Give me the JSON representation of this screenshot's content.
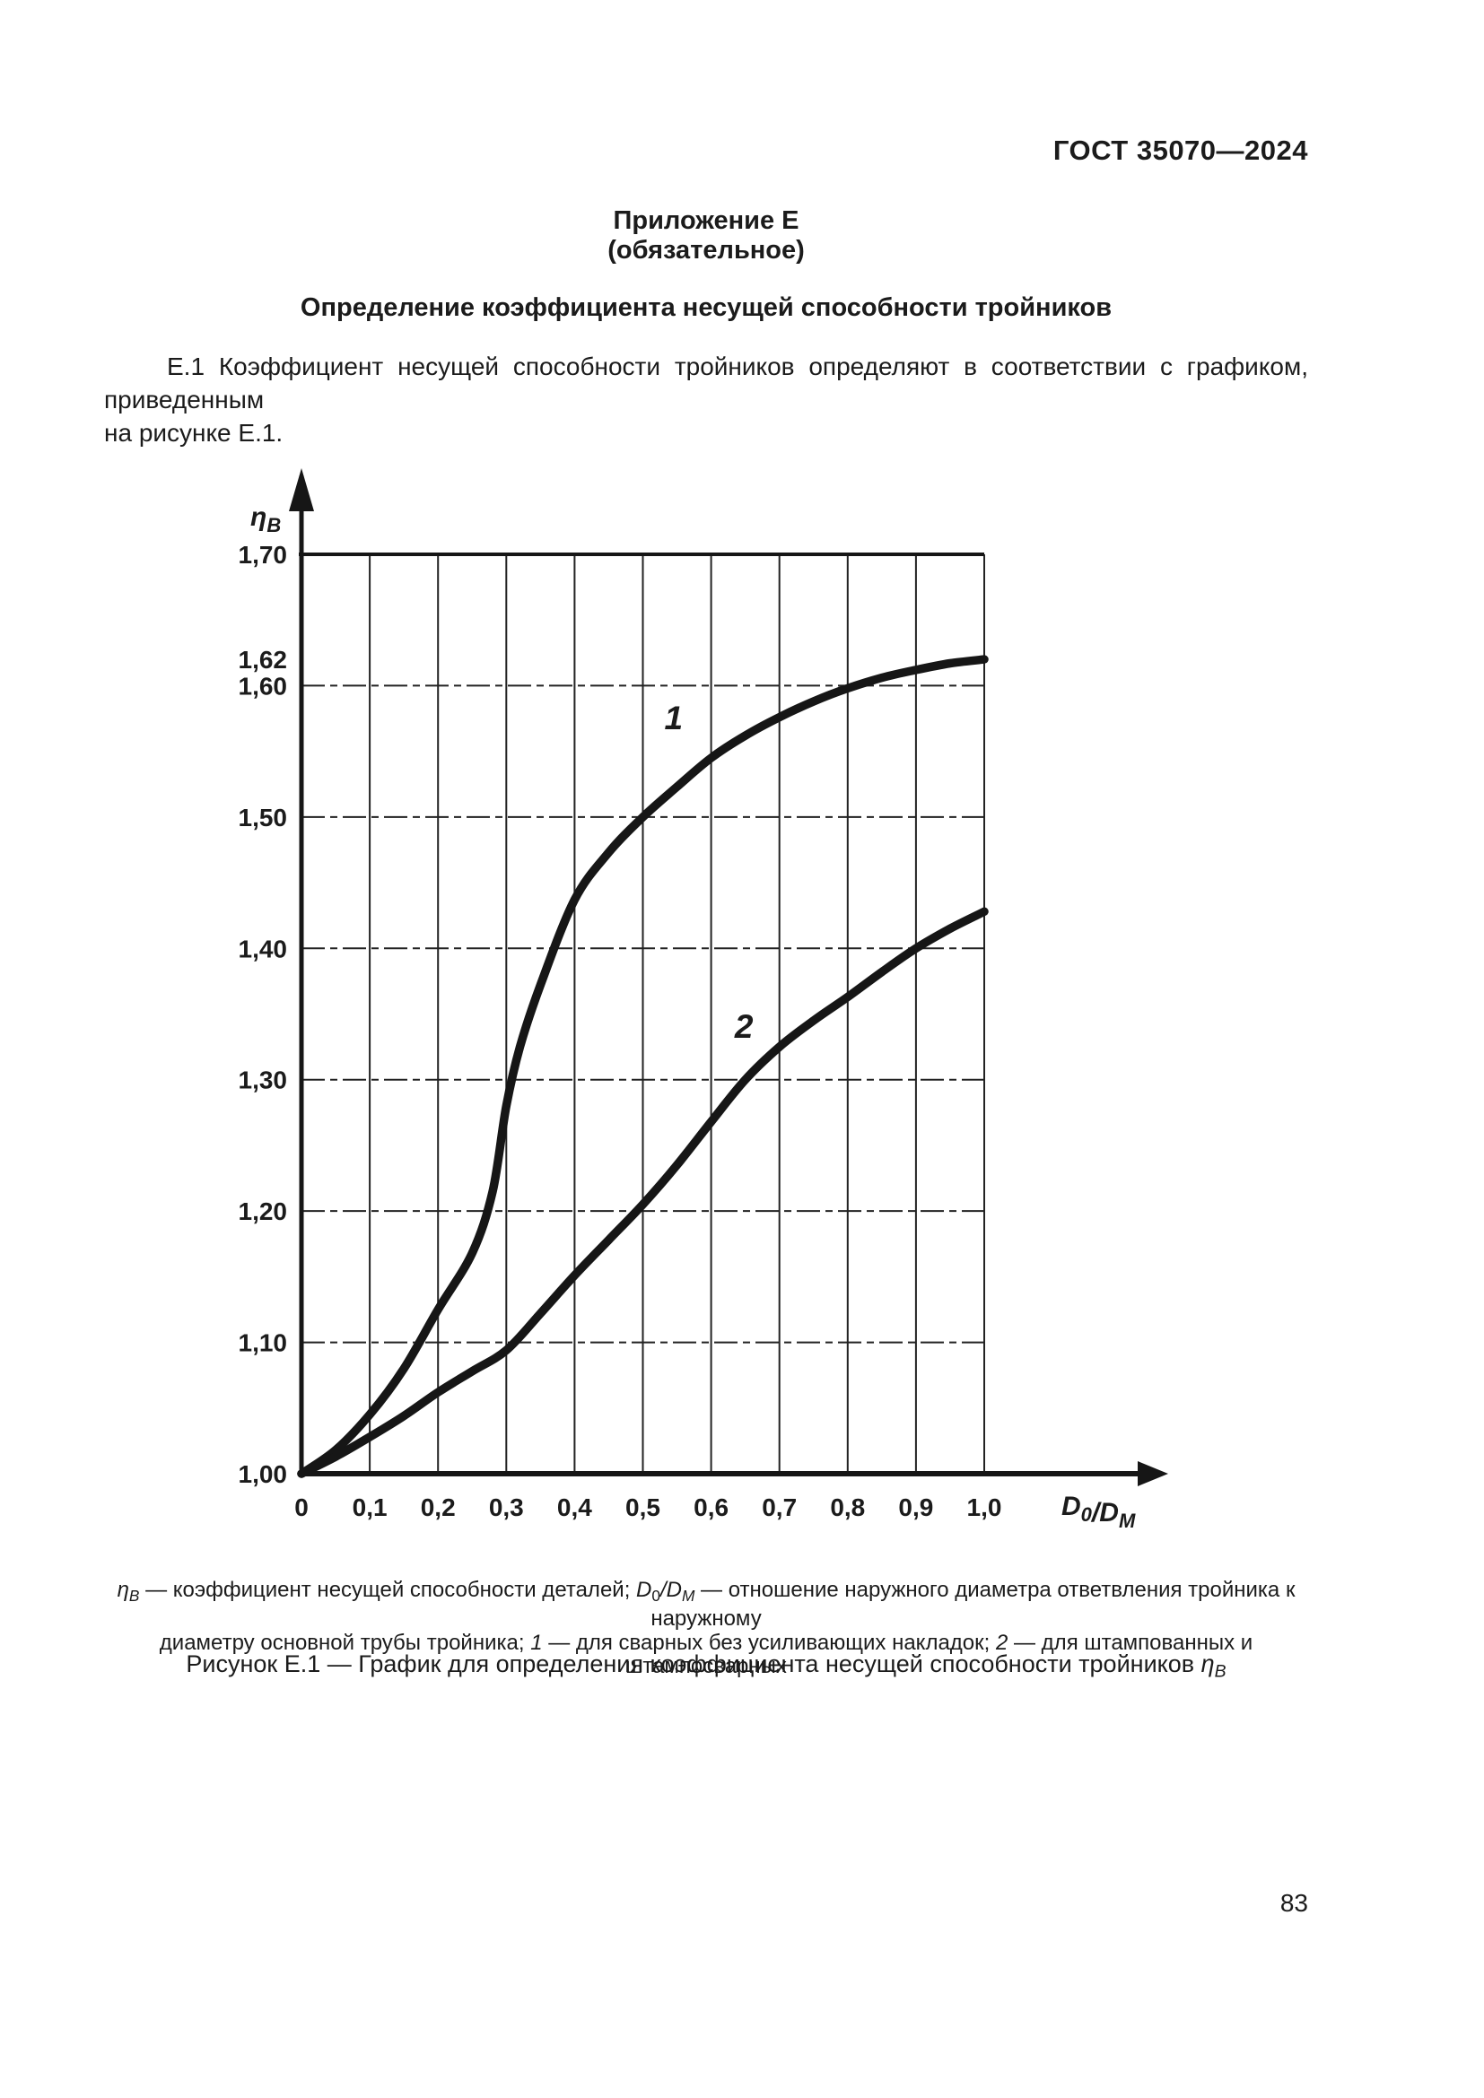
{
  "page": {
    "standard_code": "ГОСТ 35070—2024",
    "page_number": "83"
  },
  "appendix": {
    "label": "Приложение Е",
    "obligation": "(обязательное)",
    "title": "Определение коэффициента несущей способности тройников"
  },
  "body": {
    "line1": "Е.1 Коэффициент несущей способности тройников определяют  в соответствии с графиком, приведенным",
    "line2": "на рисунке Е.1."
  },
  "chart_data": {
    "type": "line",
    "title": "Рисунок Е.1",
    "xlabel_rich": [
      {
        "t": "D",
        "i": true
      },
      {
        "t": "0",
        "sub": true
      },
      {
        "t": "/",
        "i": true
      },
      {
        "t": "D",
        "i": true
      },
      {
        "t": "M",
        "sub": true,
        "i": true
      }
    ],
    "ylabel_rich": [
      {
        "t": "η",
        "i": true
      },
      {
        "t": "B",
        "sub": true,
        "i": true
      }
    ],
    "xlim": [
      0,
      1
    ],
    "ylim": [
      1.0,
      1.7
    ],
    "grid": true,
    "legend_position": "none",
    "x_ticks": {
      "values": [
        0,
        0.1,
        0.2,
        0.3,
        0.4,
        0.5,
        0.6,
        0.7,
        0.8,
        0.9,
        1.0
      ],
      "labels": [
        "0",
        "0,1",
        "0,2",
        "0,3",
        "0,4",
        "0,5",
        "0,6",
        "0,7",
        "0,8",
        "0,9",
        "1,0"
      ]
    },
    "y_ticks": {
      "values": [
        1.0,
        1.1,
        1.2,
        1.3,
        1.4,
        1.5,
        1.6,
        1.7
      ],
      "labels": [
        "1,00",
        "1,10",
        "1,20",
        "1,30",
        "1,40",
        "1,50",
        "1,60",
        "1,70"
      ]
    },
    "extra_y_tick": {
      "value": 1.62,
      "label": "1,62"
    },
    "series": [
      {
        "name": "1",
        "description": "для сварных без усиливающих накладок",
        "label": "1",
        "label_at": [
          0.545,
          1.567
        ],
        "points": [
          [
            0,
            1.0
          ],
          [
            0.05,
            1.018
          ],
          [
            0.1,
            1.045
          ],
          [
            0.15,
            1.08
          ],
          [
            0.2,
            1.125
          ],
          [
            0.25,
            1.168
          ],
          [
            0.28,
            1.215
          ],
          [
            0.3,
            1.28
          ],
          [
            0.32,
            1.325
          ],
          [
            0.35,
            1.372
          ],
          [
            0.4,
            1.437
          ],
          [
            0.45,
            1.473
          ],
          [
            0.5,
            1.5
          ],
          [
            0.55,
            1.523
          ],
          [
            0.6,
            1.545
          ],
          [
            0.65,
            1.562
          ],
          [
            0.7,
            1.576
          ],
          [
            0.75,
            1.588
          ],
          [
            0.8,
            1.598
          ],
          [
            0.85,
            1.606
          ],
          [
            0.9,
            1.612
          ],
          [
            0.95,
            1.617
          ],
          [
            1.0,
            1.62
          ]
        ]
      },
      {
        "name": "2",
        "description": "для штампованных и штампосварных",
        "label": "2",
        "label_at": [
          0.648,
          1.332
        ],
        "points": [
          [
            0,
            1.0
          ],
          [
            0.05,
            1.013
          ],
          [
            0.1,
            1.028
          ],
          [
            0.15,
            1.044
          ],
          [
            0.2,
            1.062
          ],
          [
            0.25,
            1.078
          ],
          [
            0.3,
            1.094
          ],
          [
            0.35,
            1.122
          ],
          [
            0.4,
            1.151
          ],
          [
            0.45,
            1.178
          ],
          [
            0.5,
            1.205
          ],
          [
            0.55,
            1.235
          ],
          [
            0.6,
            1.268
          ],
          [
            0.65,
            1.3
          ],
          [
            0.7,
            1.325
          ],
          [
            0.75,
            1.345
          ],
          [
            0.8,
            1.363
          ],
          [
            0.85,
            1.382
          ],
          [
            0.9,
            1.4
          ],
          [
            0.95,
            1.415
          ],
          [
            1.0,
            1.428
          ]
        ]
      }
    ]
  },
  "caption": {
    "line1": [
      {
        "t": "η",
        "i": true
      },
      {
        "t": "B",
        "sub": true,
        "i": true
      },
      {
        "t": " — коэффициент несущей способности деталей; "
      },
      {
        "t": "D",
        "i": true
      },
      {
        "t": "0",
        "sub": true
      },
      {
        "t": "/",
        "i": true
      },
      {
        "t": "D",
        "i": true
      },
      {
        "t": "M",
        "sub": true,
        "i": true
      },
      {
        "t": " — отношение наружного диаметра ответвления тройника к наружному"
      }
    ],
    "line2": [
      {
        "t": "диаметру основной трубы тройника; "
      },
      {
        "t": "1",
        "i": true
      },
      {
        "t": " — для сварных без усиливающих накладок; "
      },
      {
        "t": "2",
        "i": true
      },
      {
        "t": " — для штампованных и штампосварных"
      }
    ]
  },
  "figure_caption": [
    {
      "t": "Рисунок Е.1 — График для определения коэффициента несущей способности тройников "
    },
    {
      "t": "η",
      "i": true
    },
    {
      "t": "B",
      "sub": true,
      "i": true
    }
  ]
}
